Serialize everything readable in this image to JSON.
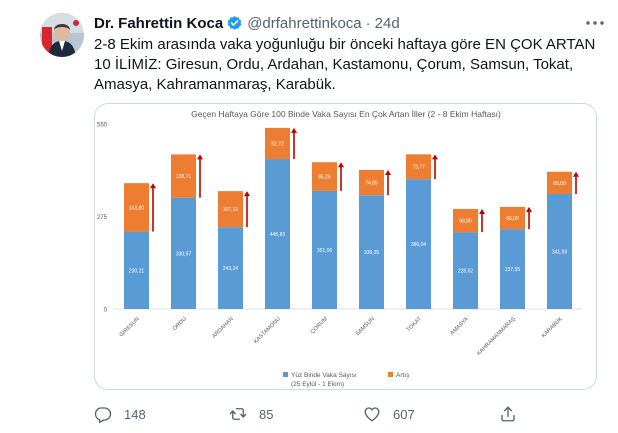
{
  "tweet": {
    "author_name": "Dr. Fahrettin Koca",
    "handle": "@drfahrettinkoca",
    "separator": "·",
    "time": "24d",
    "text_lines": [
      "2-8 Ekim arasında vaka yoğunluğu bir önceki haftaya göre EN ÇOK ARTAN",
      "10 İLİMİZ: Giresun, Ordu, Ardahan, Kastamonu, Çorum, Samsun, Tokat,",
      "Amasya, Kahramanmaraş, Karabük."
    ],
    "actions": {
      "replies": "148",
      "retweets": "85",
      "likes": "607"
    },
    "icons": [
      "verified-badge-icon",
      "more-icon",
      "reply-icon",
      "retweet-icon",
      "like-icon",
      "share-icon"
    ],
    "colors": {
      "verified": "#1d9bf0",
      "secondary_text": "#536471"
    }
  },
  "chart_data": {
    "type": "bar",
    "stacked": true,
    "title": "Geçen Haftaya Göre 100 Binde Vaka Sayısı En Çok Artan İller (2 - 8 Ekim Haftası)",
    "categories": [
      "GİRESUN",
      "ORDU",
      "ARDAHAN",
      "KASTAMONU",
      "ÇORUM",
      "SAMSUN",
      "TOKAT",
      "AMASYA",
      "KAHRAMANMARAŞ",
      "KARABÜK"
    ],
    "series": [
      {
        "name": "Yüz Binde Vaka Sayısı",
        "sub_label": "(25 Eylül - 1 Ekim)",
        "color": "#5b9bd5",
        "values": [
          230.21,
          330.97,
          243.24,
          445.83,
          351.06,
          338.35,
          386.04,
          228.62,
          237.55,
          341.93
        ],
        "labels": [
          "230,21",
          "330,97",
          "243,24",
          "445,83",
          "351,06",
          "338,35",
          "386,04",
          "228,62",
          "237,55",
          "341,93"
        ]
      },
      {
        "name": "Artış",
        "color": "#ed7d31",
        "values": [
          143.8,
          128.71,
          107.12,
          92.72,
          85.26,
          74.85,
          73.77,
          68.85,
          66.09,
          66.09
        ],
        "labels": [
          "143,80",
          "128,71",
          "107,12",
          "92,72",
          "85,26",
          "74,85",
          "73,77",
          "68,85",
          "66,09",
          "66,09"
        ]
      }
    ],
    "yticks": [
      "550",
      "275",
      "0"
    ],
    "ylim": [
      0,
      550
    ],
    "grid": false,
    "legend": "bottom",
    "arrow_color": "#c00000"
  }
}
